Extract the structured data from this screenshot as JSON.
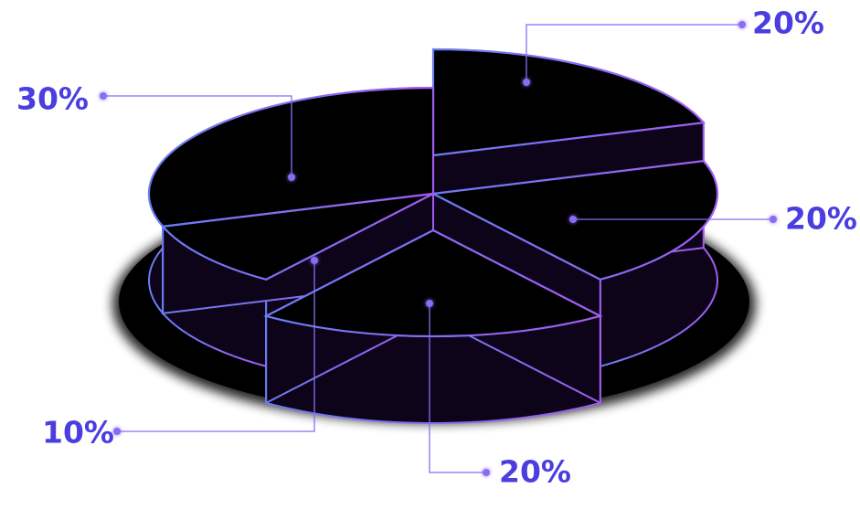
{
  "chart_data": {
    "type": "pie",
    "style": "3d-exploded",
    "title": "",
    "slices": [
      {
        "label": "20%",
        "value": 20,
        "exploded": true
      },
      {
        "label": "20%",
        "value": 20,
        "exploded": false
      },
      {
        "label": "20%",
        "value": 20,
        "exploded": true
      },
      {
        "label": "10%",
        "value": 10,
        "exploded": false
      },
      {
        "label": "30%",
        "value": 30,
        "exploded": false
      }
    ]
  },
  "colors": {
    "background": "#ffffff",
    "slice_top": "#000000",
    "slice_side": "#0d0419",
    "edge_blue": "#6b7cf2",
    "edge_purple": "#a15cf0",
    "label": "#4a3ee0",
    "leader": "#8a6cf3"
  }
}
